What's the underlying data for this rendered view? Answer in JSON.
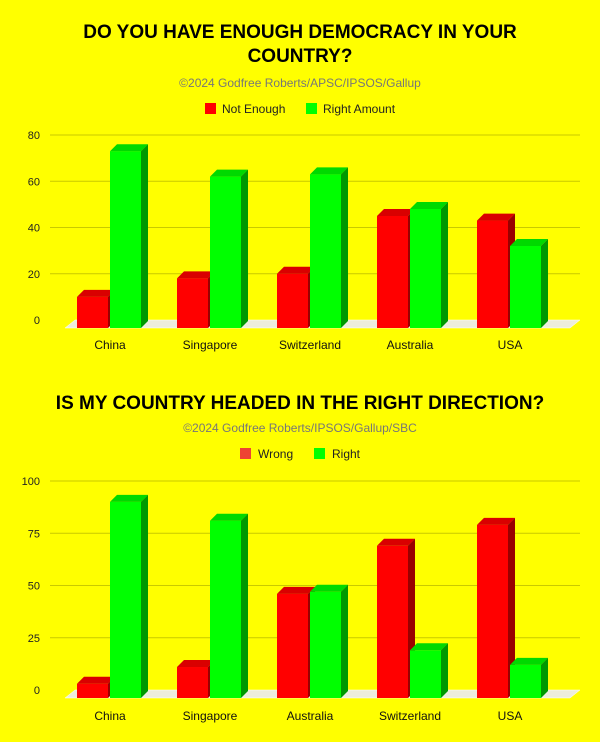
{
  "chart_data": [
    {
      "type": "bar",
      "title_lines": [
        "DO YOU HAVE ENOUGH DEMOCRACY IN YOUR",
        "COUNTRY?"
      ],
      "subtitle": "©2024 Godfree Roberts/APSC/IPSOS/Gallup",
      "categories": [
        "China",
        "Singapore",
        "Switzerland",
        "Australia",
        "USA"
      ],
      "ylim": [
        0,
        80
      ],
      "yticks": [
        0,
        20,
        40,
        60,
        80
      ],
      "grid": true,
      "legend_position": "top-center",
      "series": [
        {
          "name": "Not Enough",
          "color": "#ff0000",
          "values": [
            10,
            18,
            20,
            45,
            43
          ]
        },
        {
          "name": "Right Amount",
          "color": "#00ff00",
          "values": [
            73,
            62,
            63,
            48,
            32
          ]
        }
      ]
    },
    {
      "type": "bar",
      "title_lines": [
        "IS MY COUNTRY HEADED IN THE RIGHT DIRECTION?"
      ],
      "subtitle": "©2024 Godfree Roberts/IPSOS/Gallup/SBC",
      "categories": [
        "China",
        "Singapore",
        "Australia",
        "Switzerland",
        "USA"
      ],
      "ylim": [
        0,
        100
      ],
      "yticks": [
        0,
        25,
        50,
        75,
        100
      ],
      "grid": true,
      "legend_position": "top-center",
      "series": [
        {
          "name": "Wrong",
          "color": "#ff0000",
          "legend_color": "#ee4433",
          "values": [
            3,
            11,
            46,
            69,
            79
          ]
        },
        {
          "name": "Right",
          "color": "#00ff00",
          "values": [
            90,
            81,
            47,
            19,
            12
          ]
        }
      ]
    }
  ]
}
